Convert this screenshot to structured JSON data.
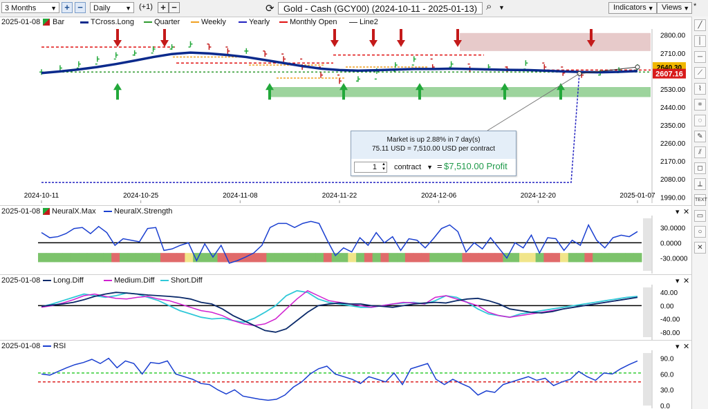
{
  "toolbar": {
    "range": "3 Months",
    "zoom_in": "+",
    "zoom_out": "−",
    "interval": "Daily",
    "offset": "(+1)",
    "step_up": "+",
    "step_down": "−",
    "refresh_icon": "refresh-icon",
    "title": "Gold - Cash (GCY00) (2024-10-11 - 2025-01-13)",
    "search_icon": "search-icon",
    "indicators": "Indicators",
    "views": "Views",
    "star": "*"
  },
  "colors": {
    "bull": "#22a83a",
    "bear": "#c41a1a",
    "tcross": "#0b2a8c",
    "quarter": "#2e9a2e",
    "weekly": "#f0a020",
    "yearly": "#2020c0",
    "monthly_open": "#e01010",
    "line2": "#333333",
    "neural_strength": "#1a3fd0",
    "long_diff": "#0b2a6a",
    "medium_diff": "#d020d0",
    "short_diff": "#30c8d8",
    "rsi": "#1a3fd0"
  },
  "chart_data": [
    {
      "type": "line",
      "panel": "price",
      "date_label": "2025-01-08",
      "legend": [
        "Bar",
        "TCross.Long",
        "Quarter",
        "Weekly",
        "Yearly",
        "Monthly Open",
        "Line2"
      ],
      "x_ticks": [
        "2024-10-11",
        "2024-10-25",
        "2024-11-08",
        "2024-11-22",
        "2024-12-06",
        "2024-12-20",
        "2025-01-07"
      ],
      "y_ticks": [
        2800,
        2710,
        2620,
        2530,
        2440,
        2350,
        2260,
        2170,
        2080,
        1990
      ],
      "ylim": [
        1960,
        2830
      ],
      "last_price": "2607.16",
      "top_price_label": "2640.30",
      "price_x": [
        0,
        2,
        4,
        6,
        8,
        10,
        12,
        14,
        16,
        18,
        20,
        22,
        24,
        26,
        28,
        30,
        32,
        34,
        36,
        38,
        40,
        42,
        44,
        46,
        48,
        50,
        52,
        54,
        56,
        58,
        60,
        62,
        64
      ],
      "price_y": [
        2615,
        2635,
        2655,
        2680,
        2700,
        2710,
        2730,
        2740,
        2755,
        2740,
        2720,
        2720,
        2705,
        2680,
        2640,
        2600,
        2570,
        2580,
        2620,
        2650,
        2680,
        2640,
        2655,
        2630,
        2640,
        2630,
        2660,
        2640,
        2610,
        2600,
        2612,
        2625,
        2640
      ],
      "tcross_y": [
        2610,
        2618,
        2628,
        2640,
        2655,
        2672,
        2690,
        2705,
        2712,
        2708,
        2700,
        2690,
        2675,
        2660,
        2645,
        2632,
        2625,
        2622,
        2624,
        2627,
        2630,
        2630,
        2632,
        2630,
        2628,
        2626,
        2625,
        2622,
        2618,
        2615,
        2614,
        2616,
        2620
      ],
      "quarter_level": 2615,
      "weekly_levels": [
        2690,
        2650,
        2585,
        2640,
        2630
      ],
      "yearly_level": 2063,
      "monthly_open_levels": [
        2740,
        2660,
        2700,
        2625
      ],
      "tooltip": {
        "line1": "Market is up 2.88% in 7 day(s)",
        "line2": "75.11 USD = 7,510.00 USD per contract",
        "quantity": "1",
        "unit": "contract",
        "equals": "=",
        "profit": "$7,510.00 Profit"
      }
    },
    {
      "type": "line",
      "panel": "neuralx",
      "date_label": "2025-01-08",
      "legend": [
        "NeuralX.Max",
        "NeuralX.Strength"
      ],
      "y_ticks": [
        "30.0000",
        "0.0000",
        "-30.0000"
      ],
      "ylim": [
        -55,
        48
      ],
      "strength": [
        20,
        10,
        12,
        18,
        28,
        30,
        18,
        32,
        20,
        -5,
        8,
        5,
        2,
        28,
        30,
        -15,
        -12,
        -5,
        0,
        -35,
        -2,
        -28,
        -5,
        -40,
        -35,
        -28,
        -20,
        -5,
        30,
        38,
        38,
        30,
        38,
        42,
        38,
        5,
        -25,
        -10,
        -18,
        10,
        -5,
        20,
        0,
        12,
        -15,
        8,
        5,
        -10,
        8,
        28,
        35,
        22,
        -18,
        0,
        -12,
        10,
        -10,
        -30,
        0,
        -10,
        15,
        -20,
        10,
        8,
        -15,
        5,
        -5,
        35,
        5,
        -10,
        10,
        15,
        12,
        22
      ],
      "max_bands": [
        "g",
        "g",
        "g",
        "g",
        "g",
        "g",
        "g",
        "g",
        "g",
        "r",
        "g",
        "g",
        "g",
        "g",
        "g",
        "r",
        "r",
        "r",
        "y",
        "g",
        "g",
        "g",
        "r",
        "r",
        "r",
        "r",
        "r",
        "r",
        "g",
        "g",
        "g",
        "g",
        "g",
        "g",
        "g",
        "r",
        "g",
        "g",
        "y",
        "g",
        "r",
        "g",
        "r",
        "g",
        "g",
        "r",
        "r",
        "r",
        "g",
        "g",
        "g",
        "g",
        "r",
        "r",
        "r",
        "r",
        "r",
        "g",
        "g",
        "y",
        "y",
        "g",
        "r",
        "r",
        "y",
        "g",
        "g",
        "r",
        "g",
        "g",
        "g",
        "g",
        "g",
        "g"
      ]
    },
    {
      "type": "line",
      "panel": "diffs",
      "date_label": "2025-01-08",
      "legend": [
        "Long.Diff",
        "Medium.Diff",
        "Short.Diff"
      ],
      "y_ticks": [
        "40.00",
        "0.00",
        "-40.00",
        "-80.00"
      ],
      "ylim": [
        -95,
        55
      ],
      "long": [
        -2,
        2,
        5,
        10,
        18,
        28,
        35,
        40,
        38,
        35,
        32,
        30,
        28,
        25,
        20,
        10,
        5,
        -10,
        -30,
        -45,
        -60,
        -75,
        -80,
        -70,
        -45,
        -20,
        0,
        5,
        8,
        5,
        5,
        0,
        -2,
        -5,
        0,
        5,
        8,
        10,
        8,
        15,
        20,
        22,
        15,
        5,
        -10,
        -15,
        -20,
        -22,
        -18,
        -10,
        -5,
        0,
        5,
        10,
        15,
        20,
        25
      ],
      "medium": [
        -5,
        0,
        8,
        18,
        30,
        35,
        28,
        22,
        20,
        25,
        28,
        20,
        15,
        5,
        -5,
        -15,
        -20,
        -30,
        -45,
        -55,
        -60,
        -55,
        -40,
        -10,
        20,
        45,
        30,
        15,
        10,
        5,
        0,
        -5,
        0,
        5,
        10,
        8,
        5,
        25,
        30,
        20,
        10,
        0,
        -20,
        -30,
        -35,
        -30,
        -25,
        -20,
        -15,
        -10,
        -5,
        0,
        5,
        10,
        15,
        20,
        25
      ],
      "short": [
        -3,
        5,
        15,
        25,
        35,
        30,
        25,
        30,
        38,
        35,
        25,
        15,
        0,
        -15,
        -25,
        -35,
        -40,
        -38,
        -45,
        -50,
        -38,
        -20,
        0,
        30,
        45,
        40,
        20,
        10,
        5,
        0,
        -5,
        -5,
        0,
        5,
        8,
        10,
        5,
        15,
        30,
        25,
        10,
        -10,
        -25,
        -30,
        -35,
        -25,
        -20,
        -15,
        -10,
        -5,
        0,
        5,
        10,
        15,
        20,
        25,
        28
      ]
    },
    {
      "type": "line",
      "panel": "rsi",
      "date_label": "2025-01-08",
      "legend": [
        "RSI"
      ],
      "y_ticks": [
        "90.0",
        "60.0",
        "30.0",
        "0.0"
      ],
      "ylim": [
        0,
        100
      ],
      "upper_level": 62,
      "lower_level": 45,
      "values": [
        60,
        58,
        65,
        72,
        78,
        82,
        88,
        80,
        90,
        72,
        85,
        80,
        60,
        82,
        80,
        85,
        60,
        55,
        50,
        42,
        40,
        30,
        22,
        30,
        18,
        15,
        12,
        10,
        12,
        20,
        35,
        45,
        60,
        70,
        75,
        60,
        55,
        50,
        42,
        55,
        50,
        45,
        62,
        40,
        70,
        75,
        80,
        50,
        40,
        50,
        42,
        35,
        20,
        28,
        25,
        40,
        45,
        50,
        55,
        48,
        52,
        38,
        45,
        50,
        65,
        55,
        48,
        62,
        60,
        70,
        78,
        85
      ]
    }
  ],
  "tools": [
    "line-tool-icon",
    "vertical-line-icon",
    "horizontal-line-icon",
    "draw-icon",
    "fib-icon",
    "channel-icon",
    "ellipse-tool-icon",
    "pencil-icon",
    "parallel-icon",
    "box-icon",
    "measure-icon",
    "text-tool-icon",
    "rectangle-icon",
    "circle-icon",
    "delete-icon"
  ],
  "tool_labels": [
    "╱",
    "│",
    "─",
    "⟋",
    "⌇",
    "⌗",
    "◌",
    "✎",
    "⫽",
    "◻",
    "⟂",
    "TEXT",
    "▭",
    "○",
    "✕"
  ],
  "panel_controls": {
    "collapse": "▾",
    "close": "✕"
  }
}
